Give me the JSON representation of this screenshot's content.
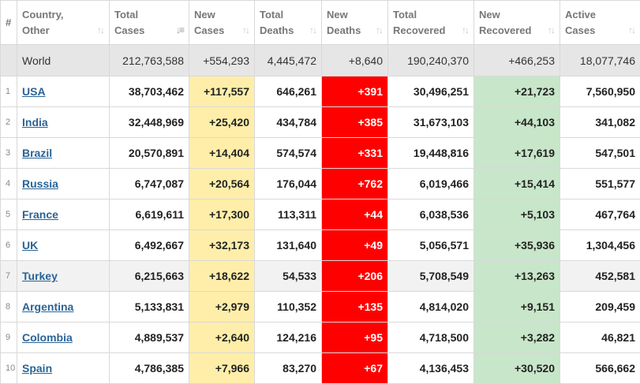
{
  "headers": [
    {
      "label": "#",
      "sort": false
    },
    {
      "label": "Country, Other",
      "sort": true
    },
    {
      "label": "Total Cases",
      "sort": true,
      "active": true
    },
    {
      "label": "New Cases",
      "sort": true
    },
    {
      "label": "Total Deaths",
      "sort": true
    },
    {
      "label": "New Deaths",
      "sort": true
    },
    {
      "label": "Total Recovered",
      "sort": true
    },
    {
      "label": "New Recovered",
      "sort": true
    },
    {
      "label": "Active Cases",
      "sort": true
    }
  ],
  "world": {
    "country": "World",
    "total_cases": "212,763,588",
    "new_cases": "+554,293",
    "total_deaths": "4,445,472",
    "new_deaths": "+8,640",
    "total_recovered": "190,240,370",
    "new_recovered": "+466,253",
    "active_cases": "18,077,746"
  },
  "rows": [
    {
      "num": "1",
      "country": "USA",
      "total_cases": "38,703,462",
      "new_cases": "+117,557",
      "total_deaths": "646,261",
      "new_deaths": "+391",
      "total_recovered": "30,496,251",
      "new_recovered": "+21,723",
      "active_cases": "7,560,950"
    },
    {
      "num": "2",
      "country": "India",
      "total_cases": "32,448,969",
      "new_cases": "+25,420",
      "total_deaths": "434,784",
      "new_deaths": "+385",
      "total_recovered": "31,673,103",
      "new_recovered": "+44,103",
      "active_cases": "341,082"
    },
    {
      "num": "3",
      "country": "Brazil",
      "total_cases": "20,570,891",
      "new_cases": "+14,404",
      "total_deaths": "574,574",
      "new_deaths": "+331",
      "total_recovered": "19,448,816",
      "new_recovered": "+17,619",
      "active_cases": "547,501"
    },
    {
      "num": "4",
      "country": "Russia",
      "total_cases": "6,747,087",
      "new_cases": "+20,564",
      "total_deaths": "176,044",
      "new_deaths": "+762",
      "total_recovered": "6,019,466",
      "new_recovered": "+15,414",
      "active_cases": "551,577"
    },
    {
      "num": "5",
      "country": "France",
      "total_cases": "6,619,611",
      "new_cases": "+17,300",
      "total_deaths": "113,311",
      "new_deaths": "+44",
      "total_recovered": "6,038,536",
      "new_recovered": "+5,103",
      "active_cases": "467,764"
    },
    {
      "num": "6",
      "country": "UK",
      "total_cases": "6,492,667",
      "new_cases": "+32,173",
      "total_deaths": "131,640",
      "new_deaths": "+49",
      "total_recovered": "5,056,571",
      "new_recovered": "+35,936",
      "active_cases": "1,304,456"
    },
    {
      "num": "7",
      "country": "Turkey",
      "total_cases": "6,215,663",
      "new_cases": "+18,622",
      "total_deaths": "54,533",
      "new_deaths": "+206",
      "total_recovered": "5,708,549",
      "new_recovered": "+13,263",
      "active_cases": "452,581"
    },
    {
      "num": "8",
      "country": "Argentina",
      "total_cases": "5,133,831",
      "new_cases": "+2,979",
      "total_deaths": "110,352",
      "new_deaths": "+135",
      "total_recovered": "4,814,020",
      "new_recovered": "+9,151",
      "active_cases": "209,459"
    },
    {
      "num": "9",
      "country": "Colombia",
      "total_cases": "4,889,537",
      "new_cases": "+2,640",
      "total_deaths": "124,216",
      "new_deaths": "+95",
      "total_recovered": "4,718,500",
      "new_recovered": "+3,282",
      "active_cases": "46,821"
    },
    {
      "num": "10",
      "country": "Spain",
      "total_cases": "4,786,385",
      "new_cases": "+7,966",
      "total_deaths": "83,270",
      "new_deaths": "+67",
      "total_recovered": "4,136,453",
      "new_recovered": "+30,520",
      "active_cases": "566,662"
    }
  ],
  "colors": {
    "new_cases_bg": "#ffeeaa",
    "new_deaths_bg": "#ff0000",
    "new_recovered_bg": "#c8e6c9",
    "world_row_bg": "#e6e6e6",
    "link": "#2a6496"
  },
  "icons": {
    "sort": "sort-arrows-icon",
    "sort_active": "sort-descending-icon"
  }
}
